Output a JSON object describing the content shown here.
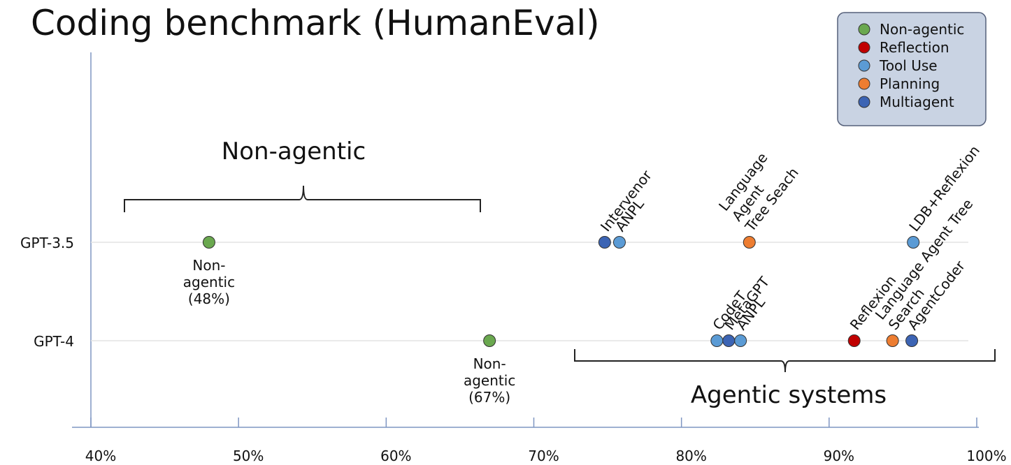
{
  "chart_data": {
    "type": "scatter",
    "title": "Coding benchmark (HumanEval)",
    "categories": [
      "GPT-3.5",
      "GPT-4"
    ],
    "xlim": [
      40,
      100
    ],
    "xticks": [
      {
        "value": 40,
        "label": "40%"
      },
      {
        "value": 50,
        "label": "50%"
      },
      {
        "value": 60,
        "label": "60%"
      },
      {
        "value": 70,
        "label": "70%"
      },
      {
        "value": 80,
        "label": "80%"
      },
      {
        "value": 90,
        "label": "90%"
      },
      {
        "value": 100,
        "label": "100%"
      }
    ],
    "grid": true,
    "legend": "top-right",
    "annotations": [
      "Non-agentic",
      "Agentic systems"
    ],
    "series": [
      {
        "name": "Non-agentic",
        "color": "#6aa84f",
        "x": [
          48,
          67
        ],
        "y": [
          "GPT-3.5",
          "GPT-4"
        ],
        "labels": [
          [
            "Non-",
            "agentic",
            "(48%)"
          ],
          [
            "Non-",
            "agentic",
            "(67%)"
          ]
        ]
      },
      {
        "name": "Reflection",
        "color": "#c00000",
        "x": [
          91.7
        ],
        "y": [
          "GPT-4"
        ],
        "labels": [
          [
            "Reflexion"
          ]
        ]
      },
      {
        "name": "Tool Use",
        "color": "#5b9bd5",
        "x": [
          75.8,
          95.7,
          82.4,
          84.0
        ],
        "y": [
          "GPT-3.5",
          "GPT-3.5",
          "GPT-4",
          "GPT-4"
        ],
        "labels": [
          [
            "ANPL"
          ],
          [
            "LDB+Reflexion"
          ],
          [
            "CodeT"
          ],
          [
            "ANPL"
          ]
        ]
      },
      {
        "name": "Planning",
        "color": "#ed7d31",
        "x": [
          84.6,
          94.3
        ],
        "y": [
          "GPT-3.5",
          "GPT-4"
        ],
        "labels": [
          [
            "Language",
            "Agent",
            "Tree Seach"
          ],
          [
            "Language Agent Tree",
            "Search"
          ]
        ]
      },
      {
        "name": "Multiagent",
        "color": "#3c64b4",
        "x": [
          74.8,
          83.2,
          95.6
        ],
        "y": [
          "GPT-3.5",
          "GPT-4",
          "GPT-4"
        ],
        "labels": [
          [
            "Intervenor"
          ],
          [
            "MetaGPT"
          ],
          [
            "AgentCoder"
          ]
        ]
      }
    ]
  }
}
